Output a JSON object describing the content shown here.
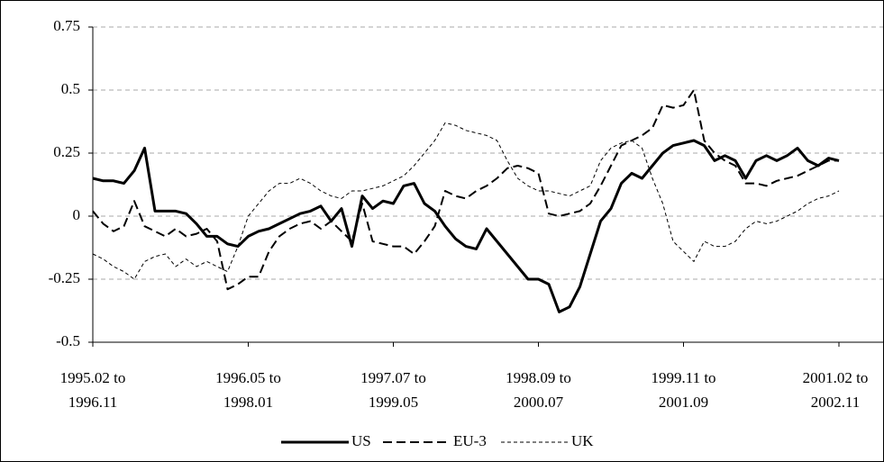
{
  "chart_data": {
    "type": "line",
    "categories": [
      "1995.02 to 1996.11",
      null,
      null,
      null,
      null,
      null,
      null,
      null,
      null,
      null,
      null,
      null,
      null,
      null,
      null,
      "1996.05 to 1998.01",
      null,
      null,
      null,
      null,
      null,
      null,
      null,
      null,
      null,
      null,
      null,
      null,
      null,
      "1997.07 to 1999.05",
      null,
      null,
      null,
      null,
      null,
      null,
      null,
      null,
      null,
      null,
      null,
      null,
      null,
      "1998.09 to 2000.07",
      null,
      null,
      null,
      null,
      null,
      null,
      null,
      null,
      null,
      null,
      null,
      null,
      null,
      "1999.11 to 2001.09",
      null,
      null,
      null,
      null,
      null,
      null,
      null,
      null,
      null,
      null,
      null,
      null,
      null,
      null,
      "2001.02 to 2002.11"
    ],
    "series": [
      {
        "name": "US",
        "color": "#000000",
        "linestyle": "solid",
        "linewidth": 3,
        "values": [
          0.15,
          0.14,
          0.14,
          0.13,
          0.18,
          0.27,
          0.02,
          0.02,
          0.02,
          0.01,
          -0.03,
          -0.08,
          -0.08,
          -0.11,
          -0.12,
          -0.08,
          -0.06,
          -0.05,
          -0.03,
          -0.01,
          0.01,
          0.02,
          0.04,
          -0.02,
          0.03,
          -0.12,
          0.08,
          0.03,
          0.06,
          0.05,
          0.12,
          0.13,
          0.05,
          0.02,
          -0.04,
          -0.09,
          -0.12,
          -0.13,
          -0.05,
          -0.1,
          -0.15,
          -0.2,
          -0.25,
          -0.25,
          -0.27,
          -0.38,
          -0.36,
          -0.28,
          -0.15,
          -0.02,
          0.03,
          0.13,
          0.17,
          0.15,
          0.2,
          0.25,
          0.28,
          0.29,
          0.3,
          0.28,
          0.22,
          0.24,
          0.22,
          0.15,
          0.22,
          0.24,
          0.22,
          0.24,
          0.27,
          0.22,
          0.2,
          0.23,
          0.22
        ]
      },
      {
        "name": "EU-3",
        "color": "#000000",
        "linestyle": "dashed",
        "linewidth": 2,
        "values": [
          0.02,
          -0.03,
          -0.06,
          -0.04,
          0.06,
          -0.04,
          -0.06,
          -0.08,
          -0.05,
          -0.08,
          -0.07,
          -0.05,
          -0.1,
          -0.29,
          -0.27,
          -0.24,
          -0.24,
          -0.14,
          -0.08,
          -0.05,
          -0.03,
          -0.02,
          -0.05,
          -0.02,
          -0.06,
          -0.1,
          0.05,
          -0.1,
          -0.11,
          -0.12,
          -0.12,
          -0.15,
          -0.1,
          -0.04,
          0.1,
          0.08,
          0.07,
          0.1,
          0.12,
          0.15,
          0.19,
          0.2,
          0.19,
          0.17,
          0.01,
          0.0,
          0.01,
          0.02,
          0.05,
          0.12,
          0.2,
          0.28,
          0.3,
          0.32,
          0.35,
          0.44,
          0.43,
          0.44,
          0.5,
          0.3,
          0.25,
          0.22,
          0.2,
          0.13,
          0.13,
          0.12,
          0.14,
          0.15,
          0.16,
          0.18,
          0.2,
          0.22,
          0.22
        ]
      },
      {
        "name": "UK",
        "color": "#000000",
        "linestyle": "dashed",
        "linewidth": 1,
        "values": [
          -0.15,
          -0.17,
          -0.2,
          -0.22,
          -0.25,
          -0.18,
          -0.16,
          -0.15,
          -0.2,
          -0.17,
          -0.2,
          -0.18,
          -0.2,
          -0.22,
          -0.12,
          0.0,
          0.05,
          0.1,
          0.13,
          0.13,
          0.15,
          0.13,
          0.1,
          0.08,
          0.07,
          0.1,
          0.1,
          0.11,
          0.12,
          0.14,
          0.16,
          0.2,
          0.25,
          0.3,
          0.37,
          0.36,
          0.34,
          0.33,
          0.32,
          0.3,
          0.22,
          0.15,
          0.12,
          0.1,
          0.1,
          0.09,
          0.08,
          0.1,
          0.12,
          0.22,
          0.27,
          0.29,
          0.3,
          0.27,
          0.15,
          0.05,
          -0.1,
          -0.14,
          -0.18,
          -0.1,
          -0.12,
          -0.12,
          -0.1,
          -0.05,
          -0.02,
          -0.03,
          -0.02,
          0.0,
          0.02,
          0.05,
          0.07,
          0.08,
          0.1
        ]
      }
    ],
    "ylim": [
      -0.5,
      0.75
    ],
    "yticks": [
      -0.5,
      -0.25,
      0,
      0.25,
      0.5,
      0.75
    ],
    "grid": true,
    "legend": "bottom"
  }
}
